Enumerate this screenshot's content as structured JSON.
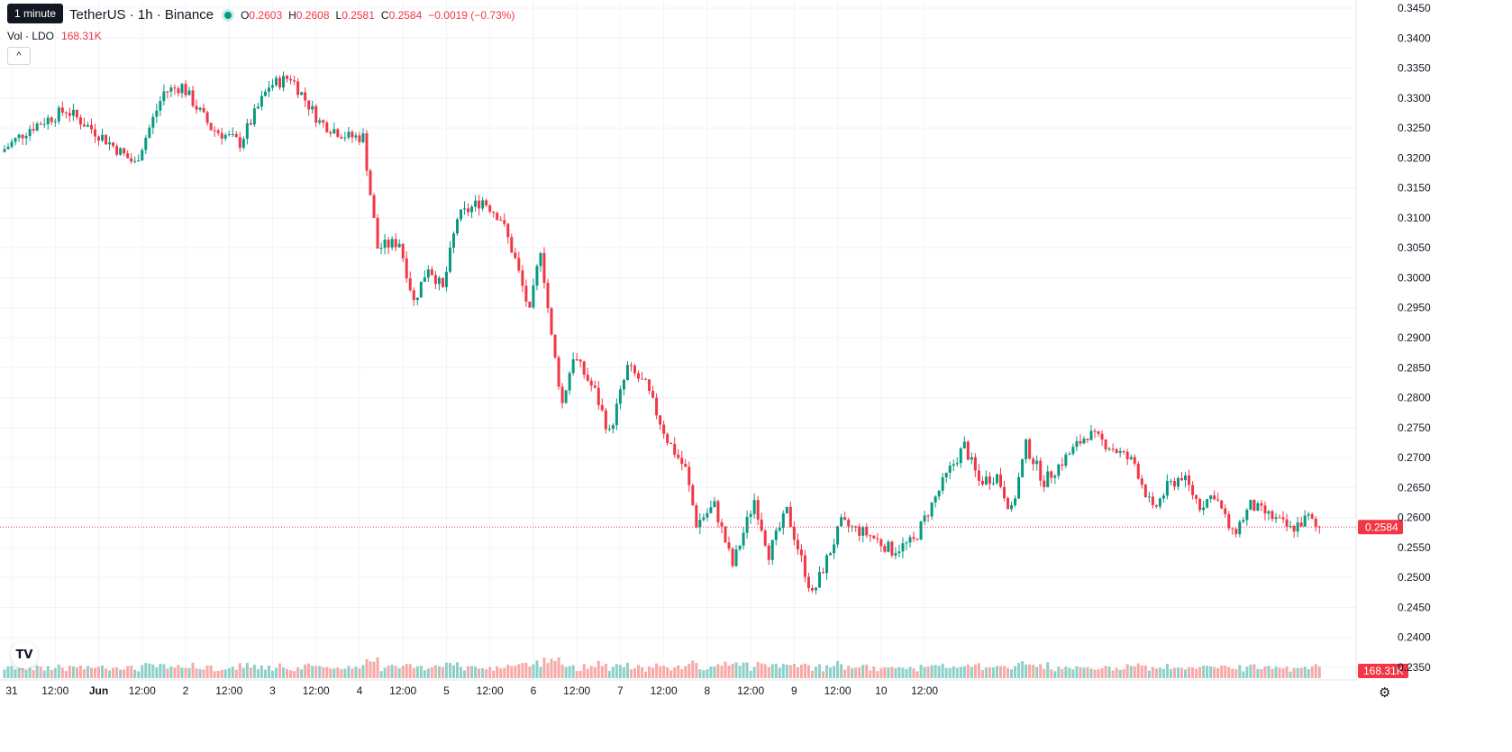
{
  "header": {
    "tooltip": "1 minute",
    "symbol_title": "TetherUS · 1h · Binance",
    "ohlc": [
      {
        "key": "O",
        "value": "0.2603"
      },
      {
        "key": "H",
        "value": "0.2608"
      },
      {
        "key": "L",
        "value": "0.2581"
      },
      {
        "key": "C",
        "value": "0.2584"
      }
    ],
    "change": "−0.0019 (−0.73%)",
    "volume_label": "Vol · LDO",
    "volume_value": "168.31K",
    "collapse_glyph": "^"
  },
  "colors": {
    "up": "#089981",
    "down": "#f23645",
    "up_vol": "#8ed0c6",
    "down_vol": "#f7a9a7",
    "grid": "#f0f3fa"
  },
  "price_axis": {
    "ticks": [
      "0.3450",
      "0.3400",
      "0.3350",
      "0.3300",
      "0.3250",
      "0.3200",
      "0.3150",
      "0.3100",
      "0.3050",
      "0.3000",
      "0.2950",
      "0.2900",
      "0.2850",
      "0.2800",
      "0.2750",
      "0.2700",
      "0.2650",
      "0.2600",
      "0.2550",
      "0.2500",
      "0.2450",
      "0.2400",
      "0.2350"
    ],
    "last_price": "0.2584",
    "volume_badge": "168.31K"
  },
  "time_axis": {
    "labels": [
      "31",
      "12:00",
      "Jun",
      "12:00",
      "2",
      "12:00",
      "3",
      "12:00",
      "4",
      "12:00",
      "5",
      "12:00",
      "6",
      "12:00",
      "7",
      "12:00",
      "8",
      "12:00",
      "9",
      "12:00",
      "10",
      "12:00"
    ],
    "bold": [
      "Jun"
    ]
  },
  "icons": {
    "logo": "tradingview-logo-icon",
    "settings": "settings-icon"
  },
  "chart_data": {
    "type": "candlestick",
    "interval": "1h",
    "ylim": [
      0.235,
      0.345
    ],
    "x_range": [
      "May 30 22:00",
      "Jun 10 ~13:00"
    ],
    "anchors": [
      {
        "t": 0,
        "p": 0.321
      },
      {
        "t": 8,
        "p": 0.325
      },
      {
        "t": 18,
        "p": 0.328
      },
      {
        "t": 28,
        "p": 0.3235
      },
      {
        "t": 37,
        "p": 0.319
      },
      {
        "t": 45,
        "p": 0.331
      },
      {
        "t": 50,
        "p": 0.332
      },
      {
        "t": 58,
        "p": 0.325
      },
      {
        "t": 66,
        "p": 0.3225
      },
      {
        "t": 74,
        "p": 0.332
      },
      {
        "t": 80,
        "p": 0.3335
      },
      {
        "t": 88,
        "p": 0.326
      },
      {
        "t": 96,
        "p": 0.3235
      },
      {
        "t": 100,
        "p": 0.3235
      },
      {
        "t": 102,
        "p": 0.314
      },
      {
        "t": 104,
        "p": 0.305
      },
      {
        "t": 110,
        "p": 0.306
      },
      {
        "t": 114,
        "p": 0.296
      },
      {
        "t": 118,
        "p": 0.302
      },
      {
        "t": 122,
        "p": 0.298
      },
      {
        "t": 126,
        "p": 0.31
      },
      {
        "t": 133,
        "p": 0.313
      },
      {
        "t": 138,
        "p": 0.31
      },
      {
        "t": 142,
        "p": 0.303
      },
      {
        "t": 146,
        "p": 0.294
      },
      {
        "t": 149,
        "p": 0.305
      },
      {
        "t": 152,
        "p": 0.29
      },
      {
        "t": 155,
        "p": 0.279
      },
      {
        "t": 158,
        "p": 0.287
      },
      {
        "t": 164,
        "p": 0.281
      },
      {
        "t": 168,
        "p": 0.274
      },
      {
        "t": 173,
        "p": 0.285
      },
      {
        "t": 178,
        "p": 0.282
      },
      {
        "t": 184,
        "p": 0.273
      },
      {
        "t": 189,
        "p": 0.268
      },
      {
        "t": 192,
        "p": 0.259
      },
      {
        "t": 197,
        "p": 0.262
      },
      {
        "t": 202,
        "p": 0.252
      },
      {
        "t": 208,
        "p": 0.263
      },
      {
        "t": 212,
        "p": 0.254
      },
      {
        "t": 217,
        "p": 0.261
      },
      {
        "t": 224,
        "p": 0.247
      },
      {
        "t": 232,
        "p": 0.259
      },
      {
        "t": 240,
        "p": 0.257
      },
      {
        "t": 246,
        "p": 0.2545
      },
      {
        "t": 252,
        "p": 0.256
      },
      {
        "t": 256,
        "p": 0.261
      },
      {
        "t": 262,
        "p": 0.268
      },
      {
        "t": 266,
        "p": 0.272
      },
      {
        "t": 270,
        "p": 0.266
      },
      {
        "t": 275,
        "p": 0.267
      },
      {
        "t": 279,
        "p": 0.261
      },
      {
        "t": 283,
        "p": 0.272
      },
      {
        "t": 288,
        "p": 0.266
      },
      {
        "t": 294,
        "p": 0.27
      },
      {
        "t": 300,
        "p": 0.274
      },
      {
        "t": 306,
        "p": 0.272
      },
      {
        "t": 313,
        "p": 0.269
      },
      {
        "t": 318,
        "p": 0.261
      },
      {
        "t": 322,
        "p": 0.265
      },
      {
        "t": 326,
        "p": 0.267
      },
      {
        "t": 331,
        "p": 0.262
      },
      {
        "t": 335,
        "p": 0.264
      },
      {
        "t": 340,
        "p": 0.257
      },
      {
        "t": 345,
        "p": 0.262
      },
      {
        "t": 351,
        "p": 0.26
      },
      {
        "t": 356,
        "p": 0.258
      },
      {
        "t": 361,
        "p": 0.26
      },
      {
        "t": 363,
        "p": 0.2584
      }
    ],
    "last": {
      "open": 0.2603,
      "high": 0.2608,
      "low": 0.2581,
      "close": 0.2584,
      "volume": "168.31K"
    }
  }
}
